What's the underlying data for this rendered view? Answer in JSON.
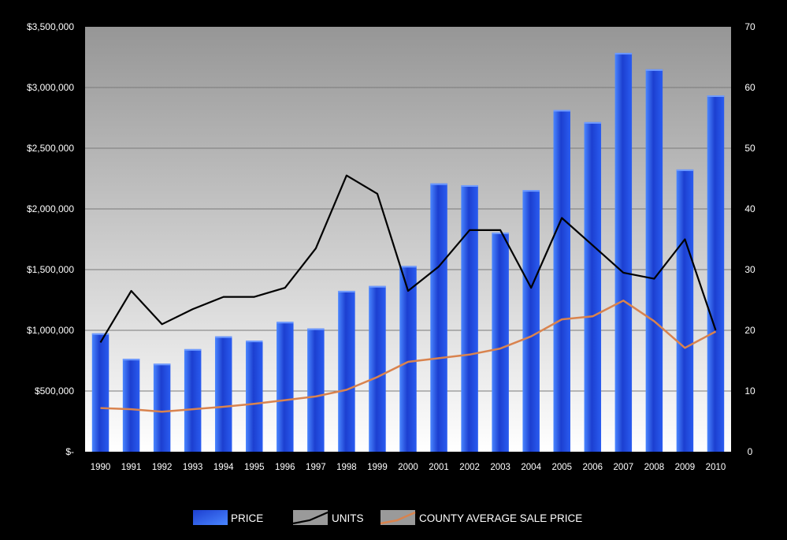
{
  "chart_data": {
    "type": "bar",
    "categories": [
      "1990",
      "1991",
      "1992",
      "1993",
      "1994",
      "1995",
      "1996",
      "1997",
      "1998",
      "1999",
      "2000",
      "2001",
      "2002",
      "2003",
      "2004",
      "2005",
      "2006",
      "2007",
      "2008",
      "2009",
      "2010"
    ],
    "series": [
      {
        "name": "PRICE",
        "type": "bar",
        "axis": "left",
        "values": [
          975000,
          765000,
          725000,
          845000,
          950000,
          915000,
          1070000,
          1015000,
          1325000,
          1365000,
          1530000,
          2210000,
          2195000,
          1805000,
          2155000,
          2815000,
          2715000,
          3285000,
          3150000,
          2325000,
          2935000
        ]
      },
      {
        "name": "UNITS",
        "type": "line",
        "axis": "right",
        "values": [
          18,
          26.5,
          21,
          23.5,
          25.5,
          25.5,
          27,
          33.5,
          45.5,
          42.5,
          26.5,
          30.5,
          36.5,
          36.5,
          27,
          38.5,
          34,
          29.5,
          28.5,
          35,
          20
        ]
      },
      {
        "name": "COUNTY AVERAGE SALE PRICE",
        "type": "line",
        "axis": "right",
        "values": [
          7.2,
          7,
          6.6,
          7,
          7.4,
          7.9,
          8.5,
          9.1,
          10.2,
          12.3,
          14.8,
          15.4,
          16,
          17,
          19,
          21.8,
          22.3,
          24.9,
          21.5,
          17.1,
          19.8
        ]
      }
    ],
    "y_left": {
      "ylim": [
        0,
        3500000
      ],
      "tick_labels": [
        "$-",
        "$500,000",
        "$1,000,000",
        "$1,500,000",
        "$2,000,000",
        "$2,500,000",
        "$3,000,000",
        "$3,500,000"
      ]
    },
    "y_right": {
      "ylim": [
        0,
        70
      ],
      "tick_labels": [
        "0",
        "10",
        "20",
        "30",
        "40",
        "50",
        "60",
        "70"
      ]
    },
    "grid": true,
    "legend_position": "bottom-center",
    "colors": {
      "price": "#2a55e6",
      "units": "#000000",
      "county": "#d9834e",
      "page_bg": "#000000",
      "plot_top": "#9a9a9a",
      "plot_bottom": "#ffffff",
      "text": "#ffffff"
    }
  }
}
